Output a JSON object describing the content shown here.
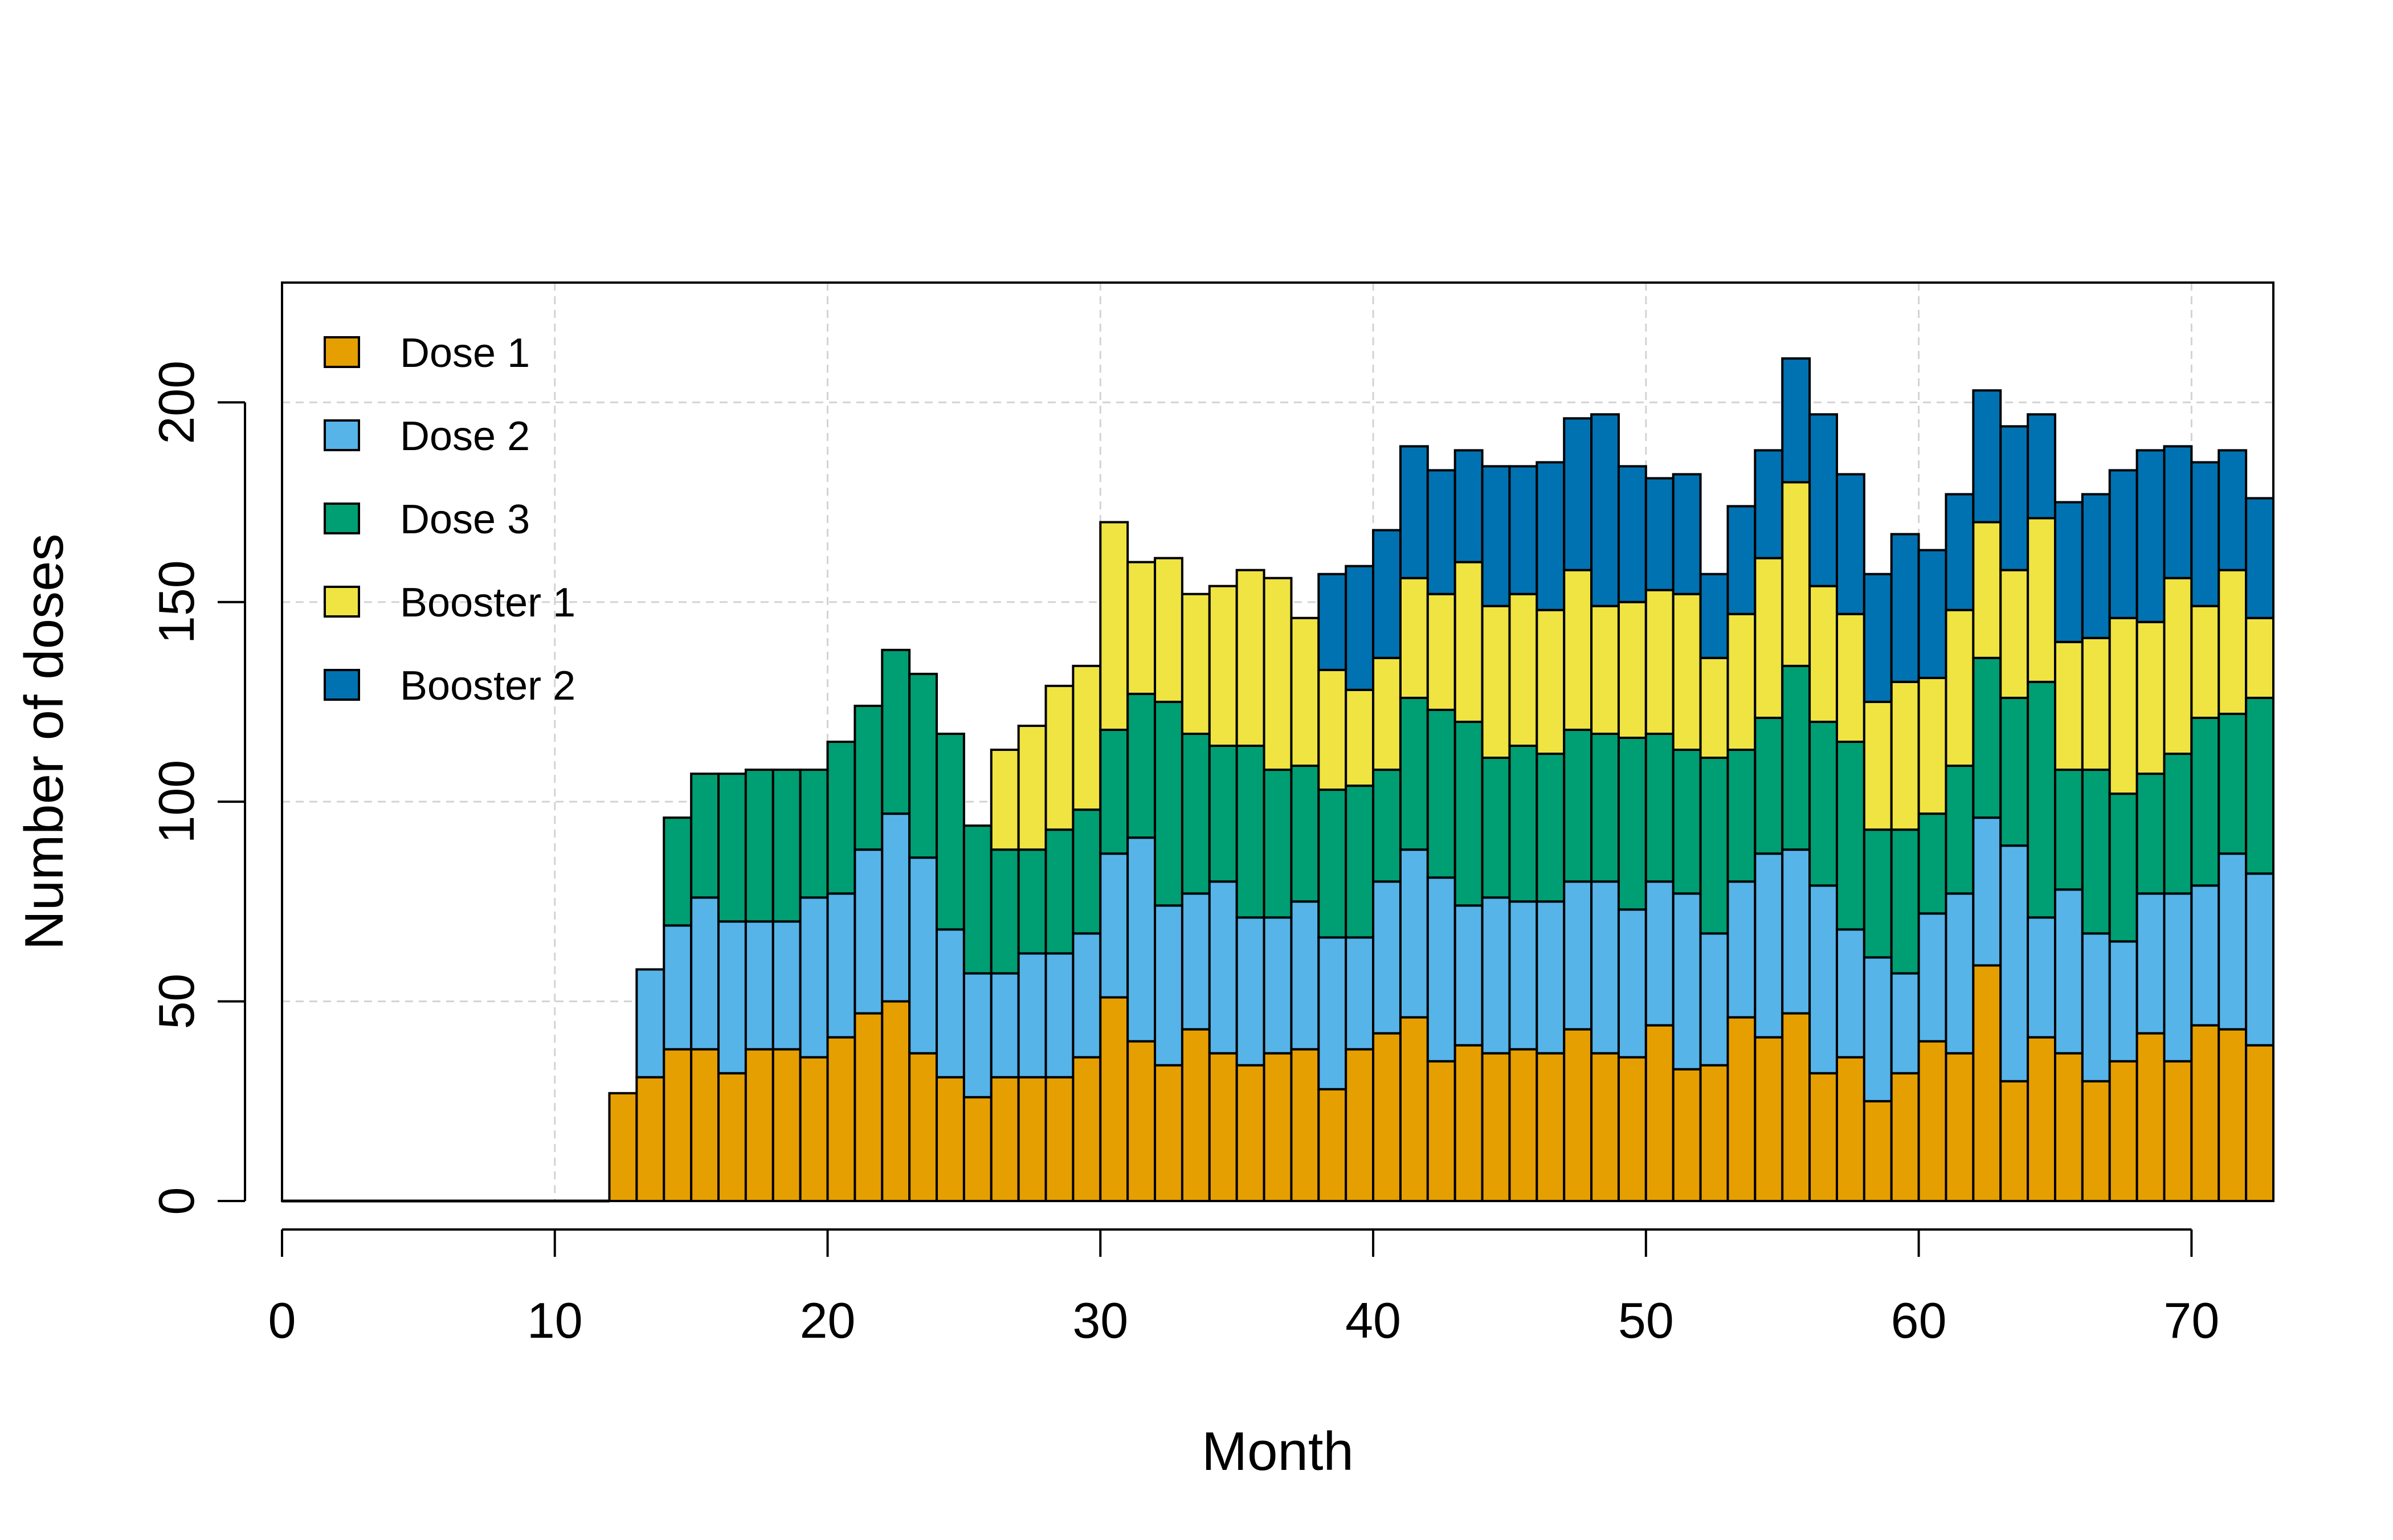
{
  "chart_data": {
    "type": "bar",
    "stacked": true,
    "xlabel": "Month",
    "ylabel": "Number of doses",
    "xlim": [
      0,
      73
    ],
    "ylim": [
      0,
      230
    ],
    "xticks": [
      0,
      10,
      20,
      30,
      40,
      50,
      60,
      70
    ],
    "yticks": [
      0,
      50,
      100,
      150,
      200
    ],
    "grid": true,
    "legend_position": "top-left",
    "bar_start_month": 12,
    "months": [
      12,
      13,
      14,
      15,
      16,
      17,
      18,
      19,
      20,
      21,
      22,
      23,
      24,
      25,
      26,
      27,
      28,
      29,
      30,
      31,
      32,
      33,
      34,
      35,
      36,
      37,
      38,
      39,
      40,
      41,
      42,
      43,
      44,
      45,
      46,
      47,
      48,
      49,
      50,
      51,
      52,
      53,
      54,
      55,
      56,
      57,
      58,
      59,
      60,
      61,
      62,
      63,
      64,
      65,
      66,
      67,
      68,
      69,
      70,
      71,
      72
    ],
    "series": [
      {
        "name": "Dose 1",
        "color": "#E69F00",
        "values": [
          27,
          31,
          38,
          38,
          32,
          38,
          38,
          36,
          41,
          47,
          50,
          37,
          31,
          26,
          31,
          31,
          31,
          36,
          51,
          40,
          34,
          43,
          37,
          34,
          37,
          38,
          28,
          38,
          42,
          46,
          35,
          39,
          37,
          38,
          37,
          43,
          37,
          36,
          44,
          33,
          34,
          46,
          41,
          47,
          32,
          36,
          25,
          32,
          40,
          37,
          59,
          30,
          41,
          37,
          30,
          35,
          42,
          35,
          44,
          43,
          39
        ]
      },
      {
        "name": "Dose 2",
        "color": "#56B4E9",
        "values": [
          0,
          27,
          31,
          38,
          38,
          32,
          32,
          40,
          36,
          41,
          47,
          49,
          37,
          31,
          26,
          31,
          31,
          31,
          36,
          51,
          40,
          34,
          43,
          37,
          34,
          37,
          38,
          28,
          38,
          42,
          46,
          35,
          39,
          37,
          38,
          37,
          43,
          37,
          36,
          44,
          33,
          34,
          46,
          41,
          47,
          32,
          36,
          25,
          32,
          40,
          37,
          59,
          30,
          41,
          37,
          30,
          35,
          42,
          35,
          44,
          43
        ]
      },
      {
        "name": "Dose 3",
        "color": "#009E73",
        "values": [
          0,
          0,
          27,
          31,
          37,
          38,
          38,
          32,
          38,
          36,
          41,
          46,
          49,
          37,
          31,
          26,
          31,
          31,
          31,
          36,
          51,
          40,
          34,
          43,
          37,
          34,
          37,
          38,
          28,
          38,
          42,
          46,
          35,
          39,
          37,
          38,
          37,
          43,
          37,
          36,
          44,
          33,
          34,
          46,
          41,
          47,
          32,
          36,
          25,
          32,
          40,
          37,
          59,
          30,
          41,
          37,
          30,
          35,
          42,
          35,
          44
        ]
      },
      {
        "name": "Booster 1",
        "color": "#F0E442",
        "values": [
          0,
          0,
          0,
          0,
          0,
          0,
          0,
          0,
          0,
          0,
          0,
          0,
          0,
          0,
          25,
          31,
          36,
          36,
          52,
          33,
          36,
          35,
          40,
          44,
          48,
          37,
          30,
          24,
          28,
          30,
          29,
          40,
          38,
          38,
          36,
          40,
          32,
          34,
          36,
          39,
          25,
          34,
          40,
          46,
          34,
          32,
          32,
          37,
          34,
          39,
          34,
          32,
          41,
          32,
          33,
          44,
          38,
          44,
          28,
          36,
          20
        ]
      },
      {
        "name": "Booster 2",
        "color": "#0072B2",
        "values": [
          0,
          0,
          0,
          0,
          0,
          0,
          0,
          0,
          0,
          0,
          0,
          0,
          0,
          0,
          0,
          0,
          0,
          0,
          0,
          0,
          0,
          0,
          0,
          0,
          0,
          0,
          24,
          31,
          32,
          33,
          31,
          28,
          35,
          32,
          37,
          38,
          48,
          34,
          28,
          30,
          21,
          27,
          27,
          31,
          43,
          35,
          32,
          37,
          32,
          29,
          33,
          36,
          26,
          35,
          36,
          37,
          43,
          33,
          36,
          30,
          30
        ]
      }
    ]
  }
}
